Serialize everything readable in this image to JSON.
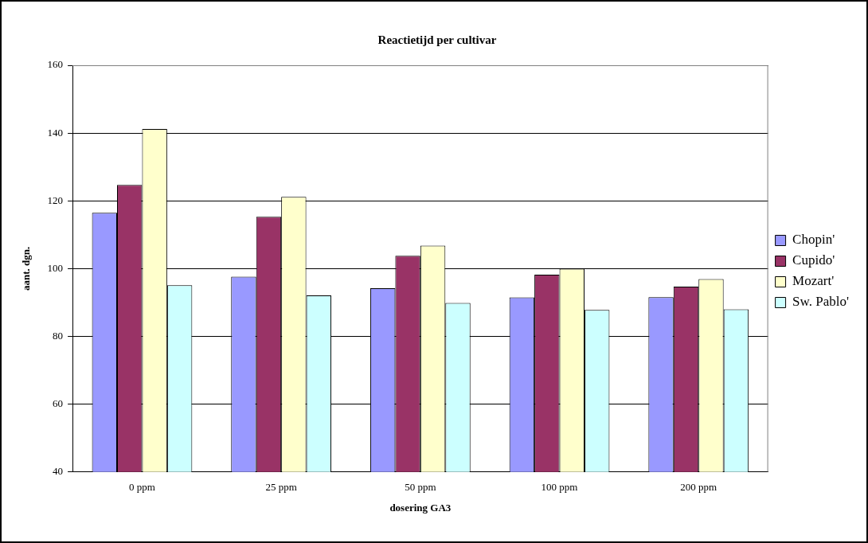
{
  "chart_data": {
    "type": "bar",
    "title": "Reactietijd per cultivar",
    "xlabel": "dosering GA3",
    "ylabel": "aant. dgn.",
    "categories": [
      "0 ppm",
      "25 ppm",
      "50 ppm",
      "100 ppm",
      "200 ppm"
    ],
    "series": [
      {
        "name": "Chopin'",
        "color": "#9999ff",
        "values": [
          116.5,
          97.6,
          94.2,
          91.5,
          91.6
        ]
      },
      {
        "name": "Cupido'",
        "color": "#993366",
        "values": [
          124.7,
          115.3,
          103.8,
          98.2,
          94.7
        ]
      },
      {
        "name": "Mozart'",
        "color": "#ffffcc",
        "values": [
          141.2,
          121.2,
          106.8,
          100,
          96.9
        ]
      },
      {
        "name": "Sw. Pablo'",
        "color": "#ccffff",
        "values": [
          95.1,
          92.1,
          89.9,
          87.8,
          88.0
        ]
      }
    ],
    "ylim": [
      40,
      160
    ],
    "yticks": [
      40,
      60,
      80,
      100,
      120,
      140,
      160
    ],
    "grid": "y",
    "legend": "right"
  }
}
